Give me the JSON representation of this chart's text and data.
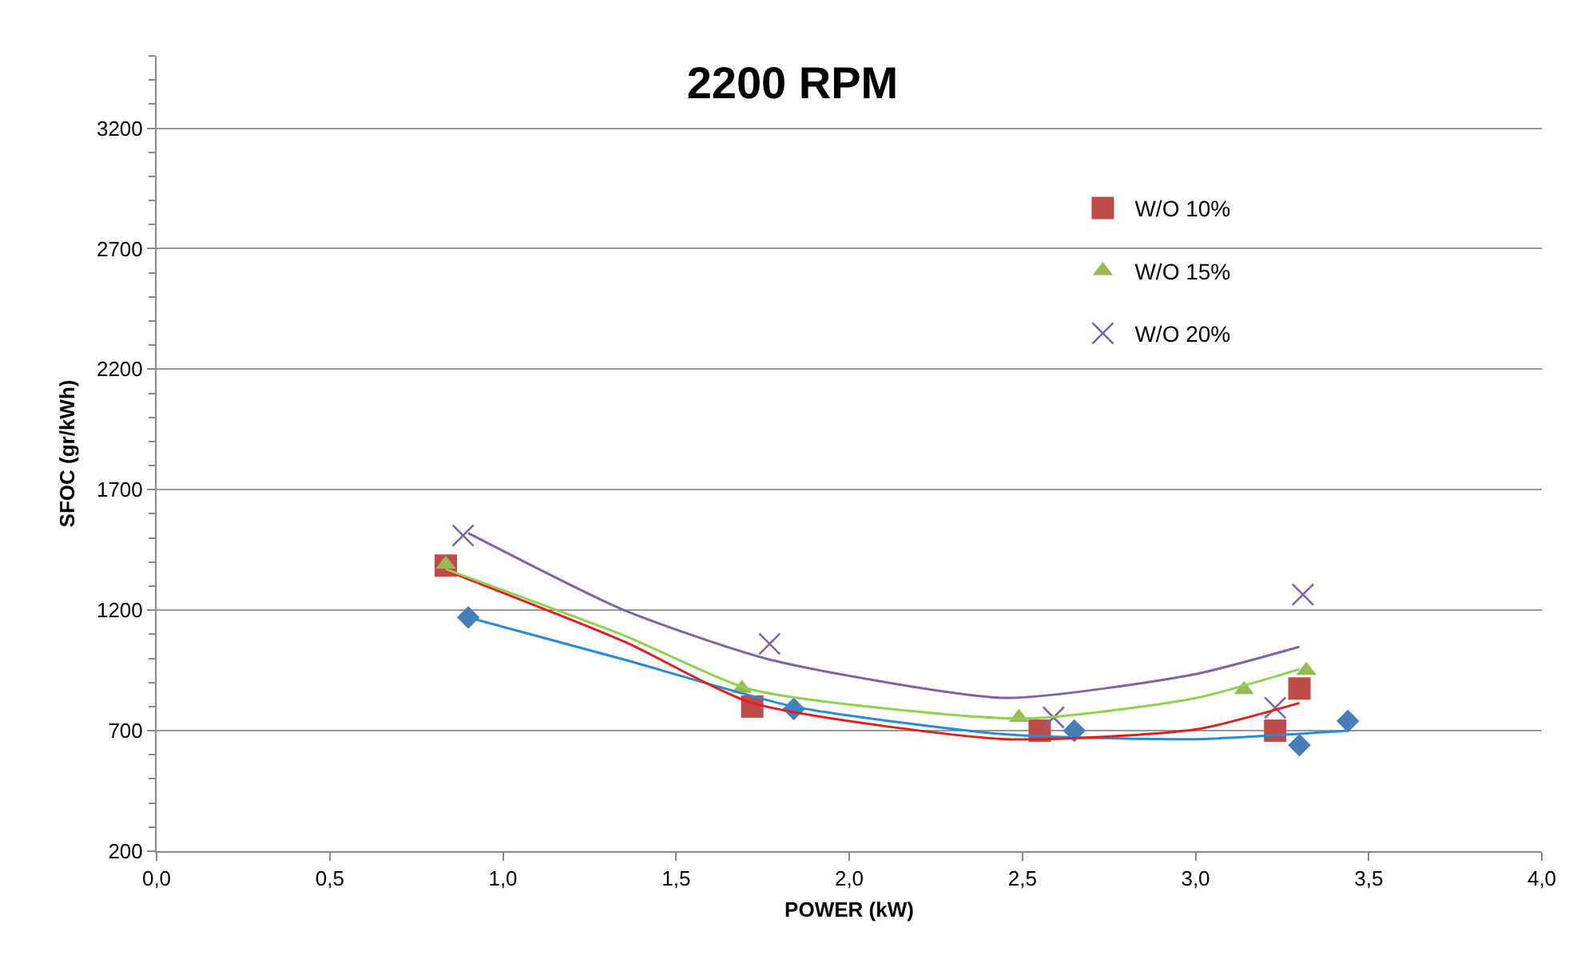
{
  "chart_data": {
    "type": "scatter",
    "title": "2200 RPM",
    "xlabel": "POWER (kW)",
    "ylabel": "SFOC (gr/kWh)",
    "xlim": [
      0,
      4
    ],
    "xticks": [
      {
        "value": 0,
        "label": "0,0"
      },
      {
        "value": 0.5,
        "label": "0,5"
      },
      {
        "value": 1,
        "label": "1,0"
      },
      {
        "value": 1.5,
        "label": "1,5"
      },
      {
        "value": 2,
        "label": "2,0"
      },
      {
        "value": 2.5,
        "label": "2,5"
      },
      {
        "value": 3,
        "label": "3,0"
      },
      {
        "value": 3.5,
        "label": "3,5"
      },
      {
        "value": 4,
        "label": "4,0"
      }
    ],
    "ylim": [
      200,
      3500
    ],
    "yticks": [
      200,
      700,
      1200,
      1700,
      2200,
      2700,
      3200
    ],
    "grid": "y",
    "legend": "right",
    "series": [
      {
        "color": "#4a7ebb",
        "marker": "diamond",
        "x": [
          0.9,
          1.84,
          2.65,
          3.3,
          3.44
        ],
        "values": [
          1170,
          790,
          700,
          640,
          740
        ]
      },
      {
        "name": "W/O 10%",
        "color": "#be4b48",
        "marker": "square",
        "x": [
          0.835,
          1.72,
          2.55,
          3.23,
          3.3
        ],
        "values": [
          1385,
          800,
          700,
          700,
          875
        ]
      },
      {
        "name": "W/O 15%",
        "color": "#98b954",
        "marker": "triangle",
        "x": [
          0.835,
          1.69,
          2.49,
          3.14,
          3.32
        ],
        "values": [
          1390,
          875,
          755,
          870,
          950
        ]
      },
      {
        "name": "W/O 20%",
        "color": "#8064a2",
        "marker": "cross",
        "x": [
          0.885,
          1.77,
          2.59,
          3.23,
          3.31
        ],
        "values": [
          1510,
          1060,
          755,
          795,
          1265
        ]
      },
      {
        "type": "line",
        "color": "#2a8ad8",
        "marker": "none",
        "x": [
          0.9,
          1.35,
          1.84,
          2.45,
          3.0,
          3.44
        ],
        "values": [
          1170,
          995,
          800,
          685,
          665,
          700
        ]
      },
      {
        "type": "line",
        "color": "#e0201f",
        "marker": "none",
        "x": [
          0.835,
          1.35,
          1.72,
          2.45,
          3.0,
          3.3
        ],
        "values": [
          1365,
          1070,
          815,
          665,
          705,
          815
        ]
      },
      {
        "type": "line",
        "color": "#92d050",
        "marker": "none",
        "x": [
          0.835,
          1.35,
          1.72,
          2.5,
          3.0,
          3.3
        ],
        "values": [
          1370,
          1095,
          870,
          750,
          835,
          955
        ]
      },
      {
        "type": "line",
        "color": "#8064a2",
        "marker": "none",
        "x": [
          0.9,
          1.35,
          1.77,
          2.45,
          3.0,
          3.3
        ],
        "values": [
          1520,
          1200,
          995,
          836,
          935,
          1048
        ]
      }
    ]
  }
}
